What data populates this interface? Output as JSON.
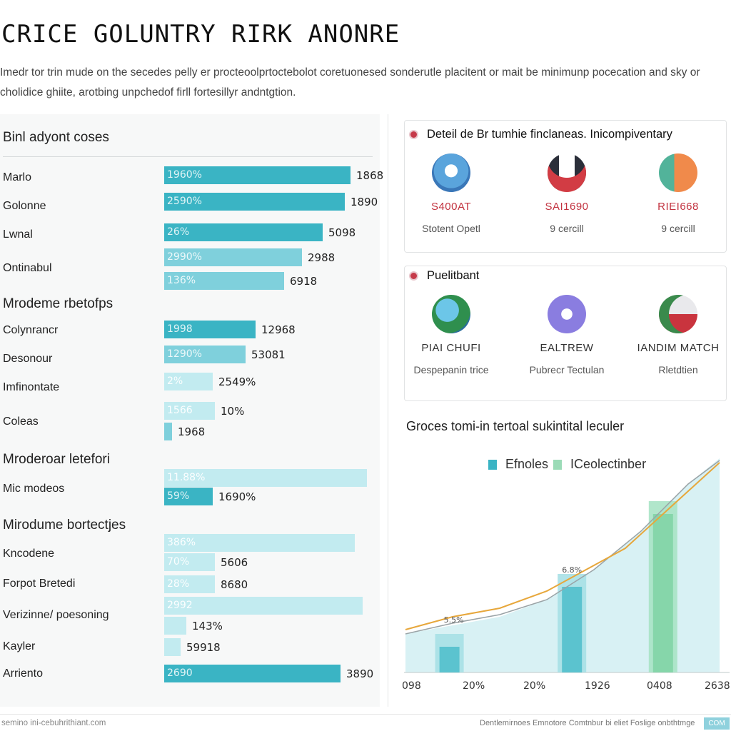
{
  "header": {
    "title": "CRICE GOLUNTRY RIRK ANONRE",
    "subtitle": "Imedr tor trin mude on the secedes pelly er procteoolprtoctebolot coretuonesed sonderutle placitent or mait be minimunp pocecation and sky or cholidice ghiite, arotbing unpchedof firll fortesillyr andntgtion."
  },
  "colors": {
    "dark_teal": "#3ab4c4",
    "mid_teal": "#7fd0dc",
    "light_teal": "#c2ebf0",
    "green": "#9bdbb7"
  },
  "left": {
    "heading": "Binl adyont coses",
    "groups": [
      {
        "heading": "Mrodeme rbetofps"
      },
      {
        "heading": "Mroderoar letefori"
      },
      {
        "heading": "Mirodume bortectjes"
      }
    ],
    "row_labels": [
      {
        "text": "Marlo"
      },
      {
        "text": "Golonne"
      },
      {
        "text": "Lwnal"
      },
      {
        "text": "Ontinabul"
      },
      {
        "text": "Colynrancr"
      },
      {
        "text": "Desonour"
      },
      {
        "text": "Imfinontate"
      },
      {
        "text": "Coleas"
      },
      {
        "text": "Mic modeos"
      },
      {
        "text": "Kncodene"
      },
      {
        "text": "Forpot Bretedi"
      },
      {
        "text": "Verizinne/ poesoning"
      },
      {
        "text": "Kayler"
      },
      {
        "text": "Arriento"
      }
    ]
  },
  "chart_data": [
    {
      "type": "bar",
      "orientation": "horizontal",
      "title": "Binl adyont coses",
      "bars": [
        {
          "label": "1960%",
          "value_text": "1868",
          "fraction": 0.92,
          "shade": "dark_teal"
        },
        {
          "label": "2590%",
          "value_text": "1890",
          "fraction": 0.89,
          "shade": "dark_teal"
        },
        {
          "label": "26%",
          "value_text": "5098",
          "fraction": 0.78,
          "shade": "dark_teal"
        },
        {
          "label": "2990%",
          "value_text": "2988",
          "fraction": 0.68,
          "shade": "mid_teal"
        },
        {
          "label": "136%",
          "value_text": "6918",
          "fraction": 0.59,
          "shade": "mid_teal"
        },
        {
          "label": "1998",
          "value_text": "12968",
          "fraction": 0.45,
          "shade": "dark_teal"
        },
        {
          "label": "1290%",
          "value_text": "53081",
          "fraction": 0.4,
          "shade": "mid_teal"
        },
        {
          "label": "2%",
          "value_text": "2549%",
          "fraction": 0.24,
          "shade": "light_teal"
        },
        {
          "label": "1566",
          "value_text": "10%",
          "fraction": 0.25,
          "shade": "light_teal"
        },
        {
          "label": "",
          "value_text": "1968",
          "fraction": 0.04,
          "shade": "mid_teal"
        },
        {
          "label": "11.88%",
          "value_text": "",
          "fraction": 1.0,
          "shade": "light_teal"
        },
        {
          "label": "59%",
          "value_text": "1690%",
          "fraction": 0.24,
          "shade": "dark_teal"
        },
        {
          "label": "386%",
          "value_text": "",
          "fraction": 0.94,
          "shade": "light_teal"
        },
        {
          "label": "70%",
          "value_text": "5606",
          "fraction": 0.25,
          "shade": "light_teal"
        },
        {
          "label": "28%",
          "value_text": "8680",
          "fraction": 0.25,
          "shade": "light_teal"
        },
        {
          "label": "2992",
          "value_text": "",
          "fraction": 0.98,
          "shade": "light_teal"
        },
        {
          "label": "",
          "value_text": "143%",
          "fraction": 0.11,
          "shade": "light_teal"
        },
        {
          "label": "",
          "value_text": "59918",
          "fraction": 0.08,
          "shade": "light_teal"
        },
        {
          "label": "2690",
          "value_text": "3890",
          "fraction": 0.87,
          "shade": "dark_teal"
        }
      ]
    },
    {
      "type": "area",
      "title": "Groces tomi-in tertoal sukintital leculer",
      "legend": [
        "Efnoles",
        "ICeolectinber"
      ],
      "legend_placement": "top-right",
      "x_ticks": [
        "098",
        "20%",
        "20%",
        "1926",
        "0408",
        "2638"
      ],
      "bar_annotations": [
        "5.5%",
        "6.8%"
      ],
      "bars": [
        {
          "x": 0.14,
          "height": 0.18,
          "series": 0
        },
        {
          "x": 0.53,
          "height": 0.46,
          "series": 0
        },
        {
          "x": 0.82,
          "height": 0.8,
          "series": 1
        }
      ],
      "area": [
        [
          0,
          0.18
        ],
        [
          0.15,
          0.22
        ],
        [
          0.3,
          0.26
        ],
        [
          0.45,
          0.34
        ],
        [
          0.6,
          0.48
        ],
        [
          0.75,
          0.66
        ],
        [
          0.9,
          0.88
        ],
        [
          1,
          1.0
        ]
      ],
      "line_orange": [
        [
          0,
          0.2
        ],
        [
          0.15,
          0.26
        ],
        [
          0.3,
          0.3
        ],
        [
          0.45,
          0.38
        ],
        [
          0.55,
          0.46
        ],
        [
          0.7,
          0.58
        ],
        [
          0.85,
          0.78
        ],
        [
          1,
          0.98
        ]
      ],
      "line_gray": [
        [
          0,
          0.18
        ],
        [
          0.15,
          0.23
        ],
        [
          0.3,
          0.27
        ],
        [
          0.45,
          0.34
        ],
        [
          0.6,
          0.48
        ],
        [
          0.75,
          0.66
        ],
        [
          0.9,
          0.88
        ],
        [
          1,
          0.99
        ]
      ]
    }
  ],
  "cards": [
    {
      "title": "Deteil de Br tumhie finclaneas. Inicompiventary",
      "items": [
        {
          "name": "S400AT",
          "sub": "Stotent Opetl",
          "icon": "globe-icon"
        },
        {
          "name": "SAI1690",
          "sub": "9 cercill",
          "icon": "flag-icon"
        },
        {
          "name": "RIEI668",
          "sub": "9 cercill",
          "icon": "badge-icon"
        }
      ]
    },
    {
      "title": "Puelitbant",
      "items": [
        {
          "name": "PIAI CHUFI",
          "sub": "Despepanin trice",
          "icon": "earth-icon"
        },
        {
          "name": "EALTREW",
          "sub": "Pubrecr Tectulan",
          "icon": "mail-icon"
        },
        {
          "name": "IANDIM MATCH",
          "sub": "Rletdtien",
          "icon": "flag-icon"
        }
      ]
    }
  ],
  "footer": {
    "left": "semino ini-cebuhrithiant.com",
    "right": "Dentlemirnoes Emnotore Comtnbur bi eliet Foslige onbthtmge",
    "badge": "COM"
  }
}
